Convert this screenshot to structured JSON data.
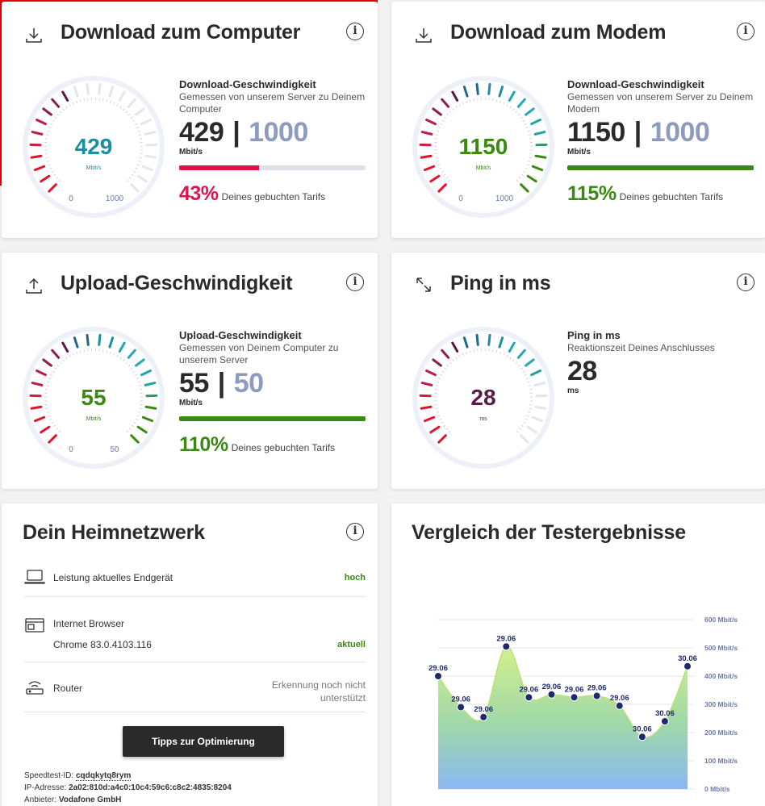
{
  "colors": {
    "red": "#e60000",
    "pink": "#e0144c",
    "green": "#3a8a12",
    "teal": "#1b8ea1",
    "purple": "#5a1a48",
    "navy": "#1f2a6b",
    "max": "#8d9bc0"
  },
  "download_pc": {
    "title": "Download zum Computer",
    "icon": "download-icon",
    "gauge": {
      "value": "429",
      "unit": "Mbit/s",
      "min": "0",
      "max": "1000",
      "fraction": 0.43,
      "color": "#1b8ea1"
    },
    "label": "Download-Geschwindigkeit",
    "desc": "Gemessen von unserem Server zu Deinem Computer",
    "value": "429",
    "sep": "|",
    "max": "1000",
    "unit": "Mbit/s",
    "progress": 0.43,
    "bar_color": "#e0144c",
    "percent": "43%",
    "percent_text": "Deines gebuchten Tarifs",
    "percent_color": "#e0144c"
  },
  "download_modem": {
    "title": "Download zum Modem",
    "icon": "download-icon",
    "gauge": {
      "value": "1150",
      "unit": "Mbit/s",
      "min": "0",
      "max": "1000",
      "fraction": 1.0,
      "color": "#3a8a12"
    },
    "label": "Download-Geschwindigkeit",
    "desc": "Gemessen von unserem Server zu Deinem Modem",
    "value": "1150",
    "sep": "|",
    "max": "1000",
    "unit": "Mbit/s",
    "progress": 1.0,
    "bar_color": "#3a8a12",
    "percent": "115%",
    "percent_text": "Deines gebuchten Tarifs",
    "percent_color": "#3a8a12"
  },
  "upload": {
    "title": "Upload-Geschwindigkeit",
    "icon": "upload-icon",
    "gauge": {
      "value": "55",
      "unit": "Mbit/s",
      "min": "0",
      "max": "50",
      "fraction": 1.0,
      "color": "#3a8a12"
    },
    "label": "Upload-Geschwindigkeit",
    "desc": "Gemessen von Deinem Computer zu unserem Server",
    "value": "55",
    "sep": "|",
    "max": "50",
    "unit": "Mbit/s",
    "progress": 1.0,
    "bar_color": "#3a8a12",
    "percent": "110%",
    "percent_text": "Deines gebuchten Tarifs",
    "percent_color": "#3a8a12"
  },
  "ping": {
    "title": "Ping in ms",
    "icon": "resize-arrows-icon",
    "gauge": {
      "value": "28",
      "unit": "ms",
      "fraction": 0.73,
      "color": "#5a1a48"
    },
    "label": "Ping in ms",
    "desc": "Reaktionszeit Deines Anschlusses",
    "value": "28",
    "unit": "ms"
  },
  "home": {
    "title": "Dein Heimnetzwerk",
    "rows": [
      {
        "icon": "laptop-icon",
        "name": "Leistung aktuelles Endgerät",
        "status": "hoch"
      },
      {
        "icon": "browser-icon",
        "name": "Internet Browser",
        "sub": "Chrome 83.0.4103.116",
        "status": "aktuell"
      },
      {
        "icon": "router-icon",
        "name": "Router",
        "status_line1": "Erkennung noch nicht",
        "status_line2": "unterstützt"
      }
    ],
    "button": "Tipps zur Optimierung",
    "speedtest_label": "Speedtest-ID:",
    "speedtest_id": "cqdqkytq8rym",
    "ip_label": "IP-Adresse:",
    "ip": "2a02:810d:a4c0:10c4:59c6:c8c2:4835:8204",
    "provider_label": "Anbieter:",
    "provider": "Vodafone GmbH"
  },
  "chart_data": {
    "type": "area",
    "title": "Vergleich der Testergebnisse",
    "ylabel": "Mbit/s",
    "ylim": [
      0,
      600
    ],
    "yticks": [
      "0 Mbit/s",
      "100 Mbit/s",
      "200 Mbit/s",
      "300 Mbit/s",
      "400 Mbit/s",
      "500 Mbit/s",
      "600 Mbit/s"
    ],
    "values": [
      400,
      290,
      255,
      505,
      325,
      335,
      325,
      330,
      295,
      185,
      240,
      435
    ],
    "labels": [
      "29.06",
      "29.06",
      "29.06",
      "29.06",
      "29.06",
      "29.06",
      "29.06",
      "29.06",
      "29.06",
      "30.06",
      "30.06",
      "30.06"
    ],
    "grid": true
  }
}
